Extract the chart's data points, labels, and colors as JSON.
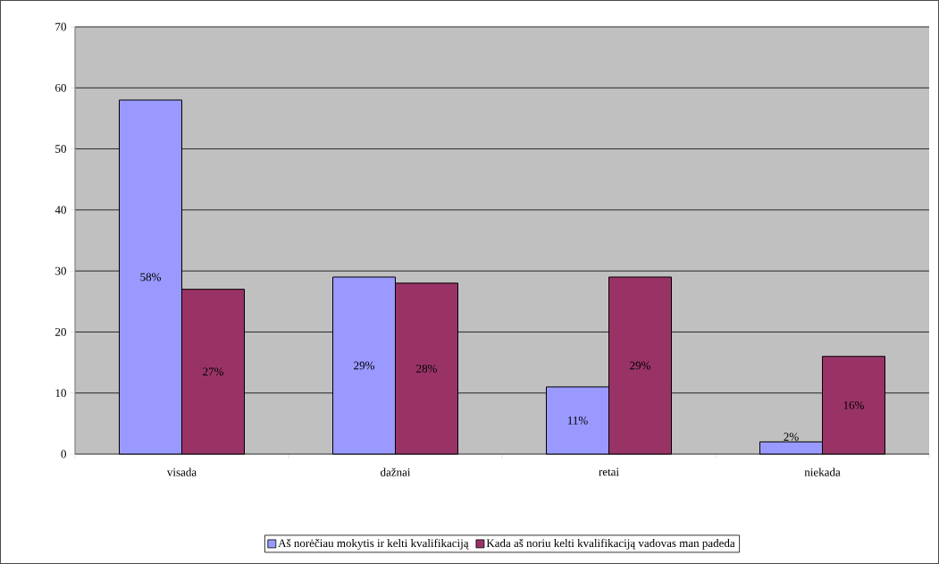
{
  "chart_data": {
    "type": "bar",
    "categories": [
      "visada",
      "dažnai",
      "retai",
      "niekada"
    ],
    "series": [
      {
        "name": "Aš norėčiau mokytis ir kelti kvalifikaciją",
        "color": "#9999ff",
        "values": [
          58,
          29,
          11,
          2
        ],
        "value_labels": [
          "58%",
          "29%",
          "11%",
          "2%"
        ]
      },
      {
        "name": "Kada aš noriu kelti kvalifikaciją  vadovas man padeda",
        "color": "#993366",
        "values": [
          27,
          28,
          29,
          16
        ],
        "value_labels": [
          "27%",
          "28%",
          "29%",
          "16%"
        ]
      }
    ],
    "ylim": [
      0,
      70
    ],
    "yticks": [
      0,
      10,
      20,
      30,
      40,
      50,
      60,
      70
    ],
    "grid": "y",
    "legend": "bottom"
  }
}
